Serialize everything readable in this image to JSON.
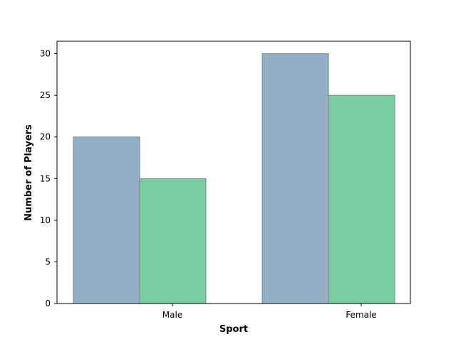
{
  "chart_data": {
    "type": "bar",
    "categories": [
      "Male",
      "Female"
    ],
    "series": [
      {
        "values": [
          20,
          30
        ],
        "color": "#94afc5"
      },
      {
        "values": [
          15,
          25
        ],
        "color": "#77cca1"
      }
    ],
    "title": "",
    "xlabel": "Sport",
    "ylabel": "Number of Players",
    "ylim": [
      0,
      31.5
    ],
    "yticks": [
      0,
      5,
      10,
      15,
      20,
      25,
      30
    ],
    "grid": false,
    "legend": "none",
    "bar_edge_color": "#808080"
  }
}
